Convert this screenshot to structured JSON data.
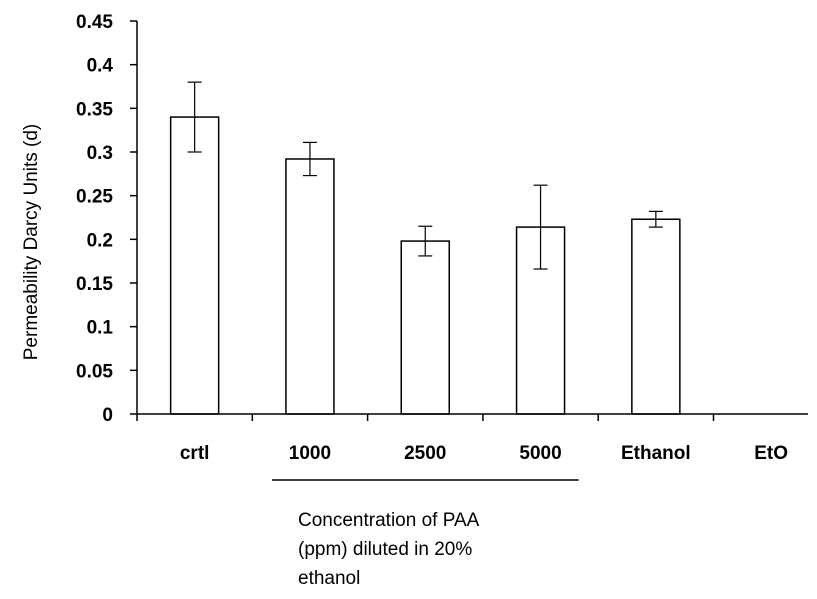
{
  "chart_data": {
    "type": "bar",
    "categories": [
      "crtl",
      "1000",
      "2500",
      "5000",
      "Ethanol",
      "EtO"
    ],
    "values": [
      0.34,
      0.292,
      0.198,
      0.214,
      0.223,
      null
    ],
    "error_bars": [
      0.04,
      0.019,
      0.017,
      0.048,
      0.009,
      null
    ],
    "ylabel": "Permeability Darcy Units (d)",
    "ylim": [
      0,
      0.45
    ],
    "yticks": [
      "0",
      "0.05",
      "0.1",
      "0.15",
      "0.2",
      "0.25",
      "0.3",
      "0.35",
      "0.4",
      "0.45"
    ],
    "ytick_values": [
      0,
      0.05,
      0.1,
      0.15,
      0.2,
      0.25,
      0.3,
      0.35,
      0.4,
      0.45
    ],
    "grid": false,
    "bar_fill": "#ffffff",
    "bar_stroke": "#000000",
    "group_annotation": {
      "categories": [
        "1000",
        "2500",
        "5000"
      ],
      "lines": [
        "Concentration of PAA",
        "(ppm) diluted in 20%",
        "ethanol"
      ]
    }
  }
}
